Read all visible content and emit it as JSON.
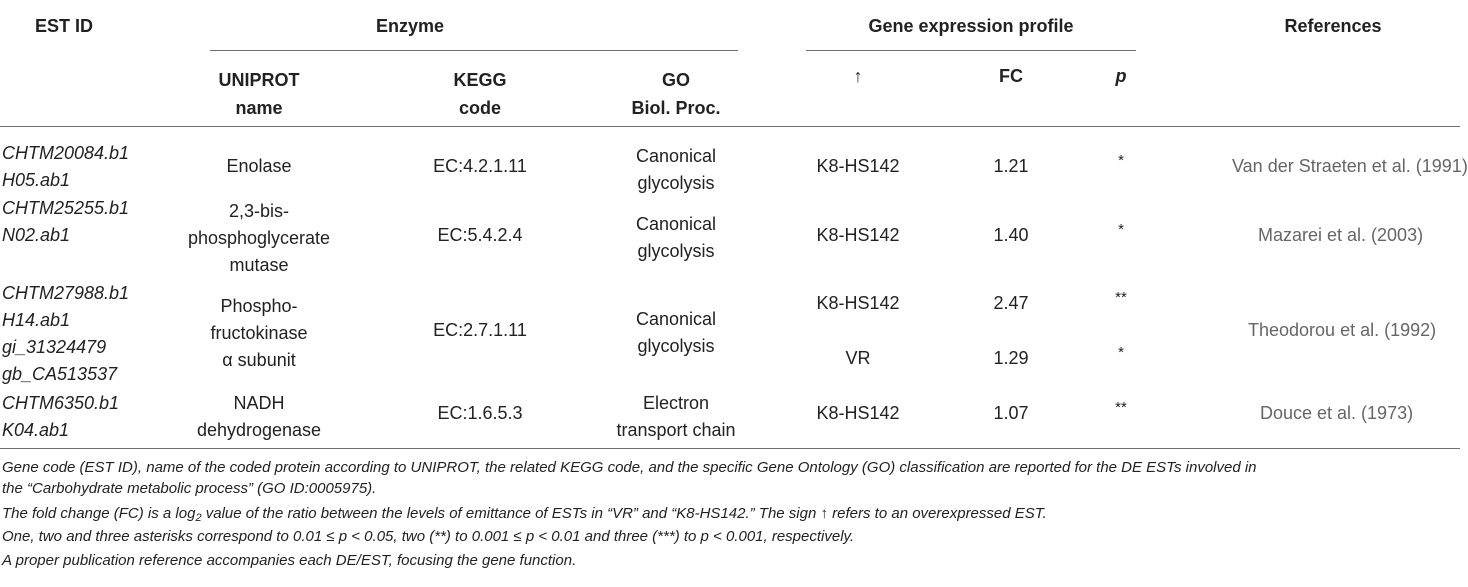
{
  "headers": {
    "est_id": "EST ID",
    "enzyme": "Enzyme",
    "gene_expression": "Gene expression profile",
    "references": "References",
    "uniprot": [
      "UNIPROT",
      "name"
    ],
    "kegg": [
      "KEGG",
      "code"
    ],
    "go": [
      "GO",
      "Biol. Proc."
    ],
    "up": "↑",
    "fc": "FC",
    "p": "p"
  },
  "rows": [
    {
      "est": [
        "CHTM20084.b1",
        "H05.ab1"
      ],
      "uniprot": [
        "Enolase"
      ],
      "kegg": "EC:4.2.1.11",
      "go": [
        "Canonical",
        "glycolysis"
      ],
      "expr": [
        {
          "up": "K8-HS142",
          "fc": "1.21",
          "p": "*"
        }
      ],
      "ref": "Van der Straeten et al. (1991)"
    },
    {
      "est": [
        "CHTM25255.b1",
        "N02.ab1"
      ],
      "uniprot": [
        "2,3-bis-",
        "phosphoglycerate",
        "mutase"
      ],
      "kegg": "EC:5.4.2.4",
      "go": [
        "Canonical",
        "glycolysis"
      ],
      "expr": [
        {
          "up": "K8-HS142",
          "fc": "1.40",
          "p": "*"
        }
      ],
      "ref": "Mazarei et al. (2003)"
    },
    {
      "est": [
        "CHTM27988.b1",
        "H14.ab1",
        "gi_31324479",
        "gb_CA513537"
      ],
      "uniprot": [
        "Phospho-",
        "fructokinase",
        "α subunit"
      ],
      "kegg": "EC:2.7.1.11",
      "go": [
        "Canonical",
        "glycolysis"
      ],
      "expr": [
        {
          "up": "K8-HS142",
          "fc": "2.47",
          "p": "**"
        },
        {
          "up": "VR",
          "fc": "1.29",
          "p": "*"
        }
      ],
      "ref": "Theodorou et al. (1992)"
    },
    {
      "est": [
        "CHTM6350.b1",
        "K04.ab1"
      ],
      "uniprot": [
        "NADH",
        "dehydrogenase"
      ],
      "kegg": "EC:1.6.5.3",
      "go": [
        "Electron",
        "transport chain"
      ],
      "expr": [
        {
          "up": "K8-HS142",
          "fc": "1.07",
          "p": "**"
        }
      ],
      "ref": "Douce et al. (1973)"
    }
  ],
  "notes": {
    "n1a": "Gene code (EST ID), name of the coded protein according to UNIPROT, the related KEGG code, and the specific Gene Ontology (GO) classification are reported for the DE ESTs involved in",
    "n1b": "the “Carbohydrate metabolic process” (GO ID:0005975).",
    "n2_pre": "The fold change (FC) is a log",
    "n2_sub": "2",
    "n2_post": " value of the ratio between the levels of emittance of ESTs in “VR” and “K8-HS142.” The sign ↑ refers to an overexpressed EST.",
    "n3": "One, two and three asterisks correspond to 0.01 ≤ p < 0.05, two (**) to 0.001 ≤ p < 0.01 and three (***) to p < 0.001, respectively.",
    "n4": "A proper publication reference accompanies each DE/EST, focusing the gene function."
  }
}
